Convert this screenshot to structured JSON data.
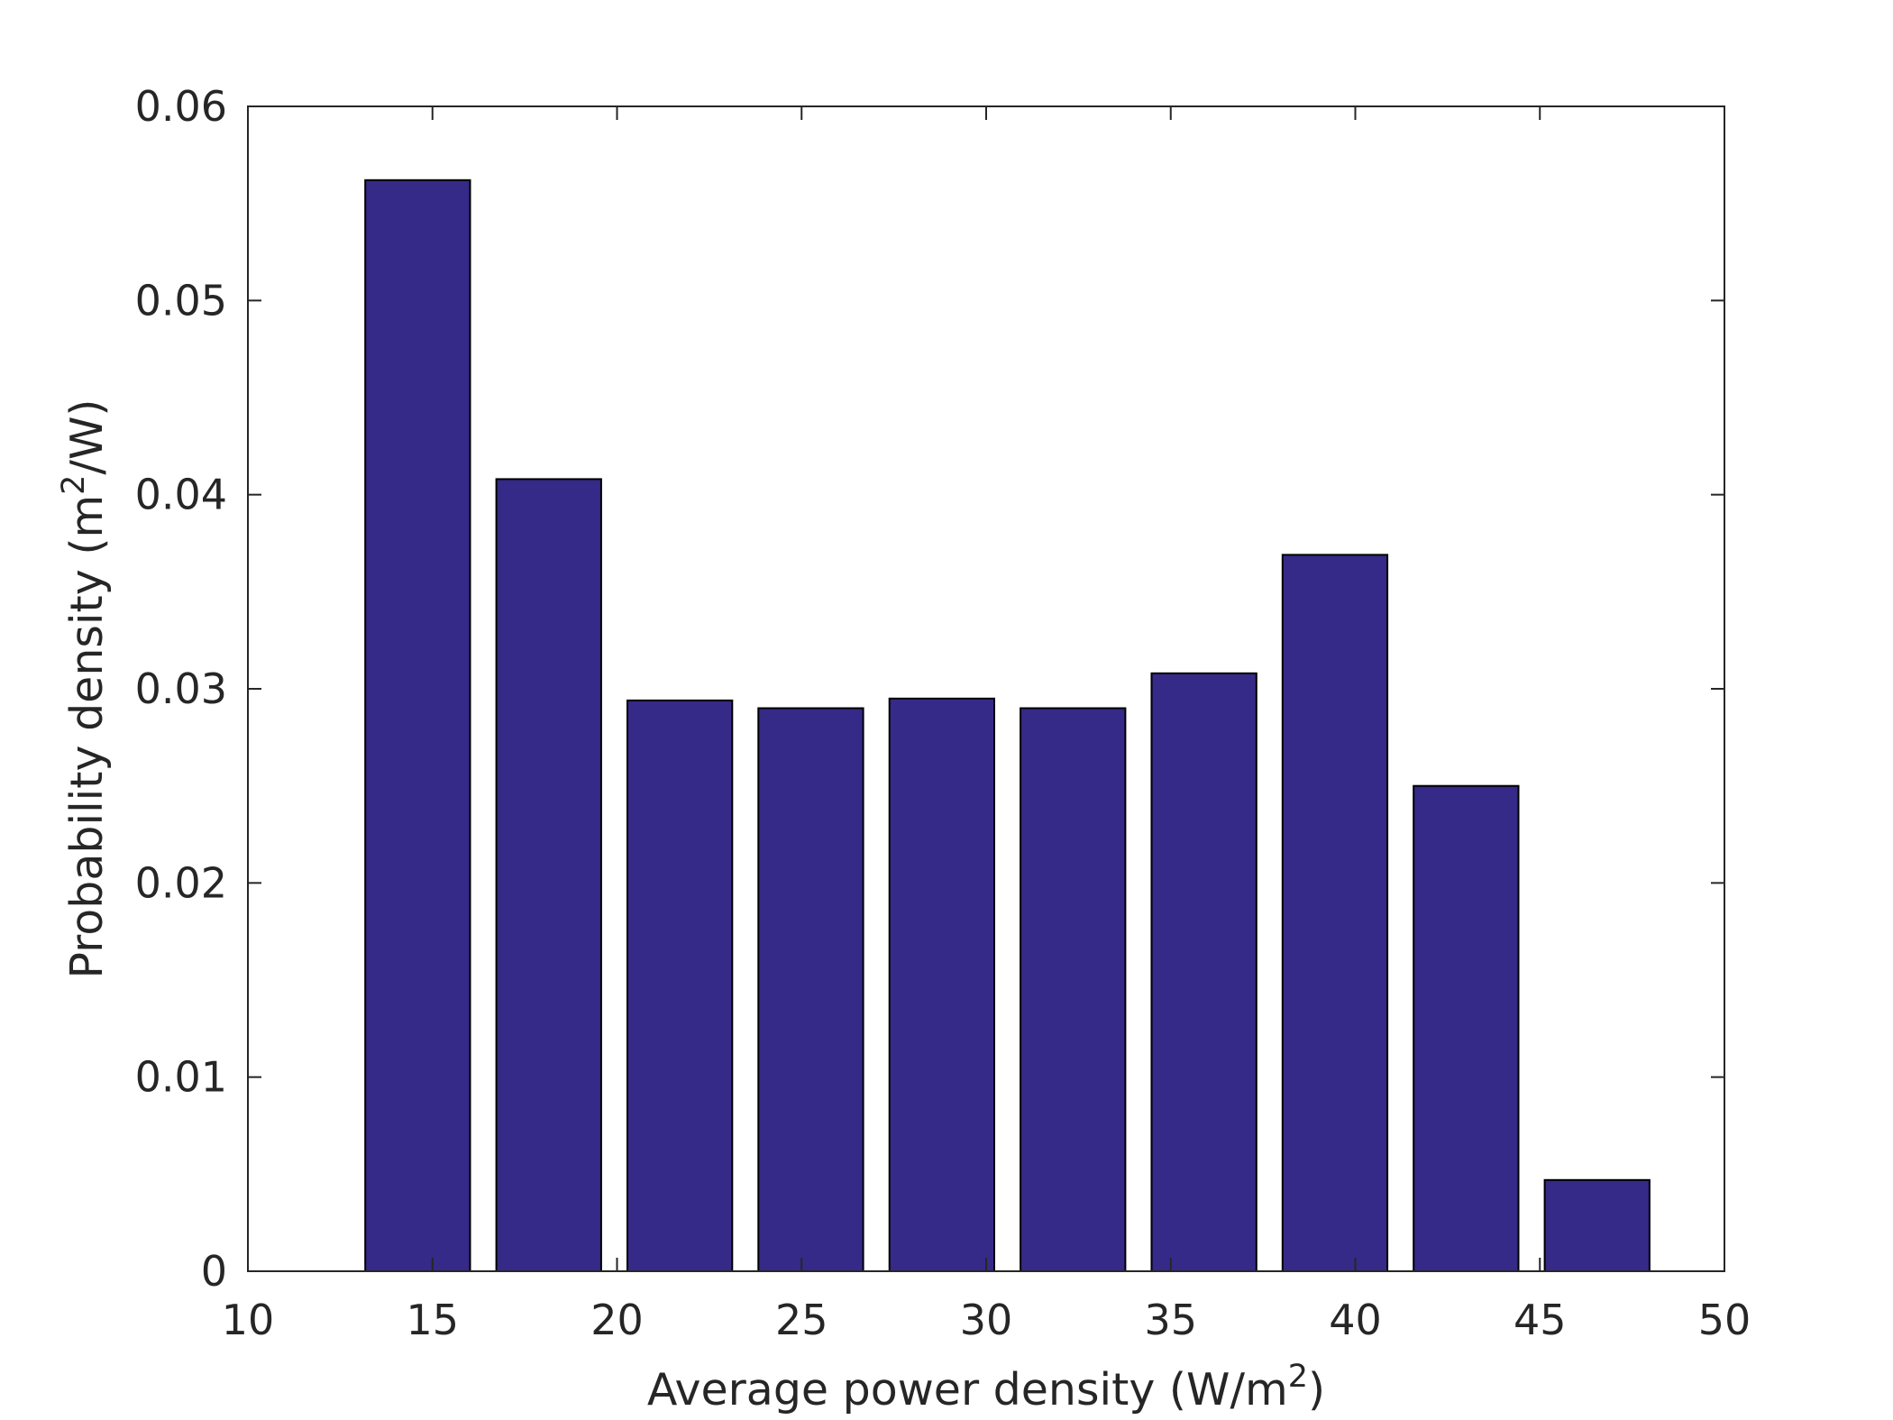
{
  "chart_data": {
    "type": "bar",
    "xlabel": {
      "text": "Average power density (W/m",
      "sup": "2",
      "after": ")"
    },
    "ylabel": {
      "text": "Probability density (m",
      "sup": "2",
      "after": "/W)"
    },
    "xlim": [
      10,
      50
    ],
    "ylim": [
      0,
      0.06
    ],
    "xticks": [
      10,
      15,
      20,
      25,
      30,
      35,
      40,
      45,
      50
    ],
    "xtick_labels": [
      "10",
      "15",
      "20",
      "25",
      "30",
      "35",
      "40",
      "45",
      "50"
    ],
    "yticks": [
      0,
      0.01,
      0.02,
      0.03,
      0.04,
      0.05,
      0.06
    ],
    "ytick_labels": [
      "0",
      "0.01",
      "0.02",
      "0.03",
      "0.04",
      "0.05",
      "0.06"
    ],
    "bar_color": "#352a87",
    "bar_edge_color": "#000000",
    "bin_width": 3.55,
    "bar_width_fraction": 0.8,
    "bin_centers": [
      14.6,
      18.15,
      21.7,
      25.25,
      28.8,
      32.35,
      35.9,
      39.45,
      43.0,
      46.55
    ],
    "values": [
      0.0562,
      0.0408,
      0.0294,
      0.029,
      0.0295,
      0.029,
      0.0308,
      0.0369,
      0.025,
      0.0047
    ],
    "grid": false,
    "box": true
  }
}
